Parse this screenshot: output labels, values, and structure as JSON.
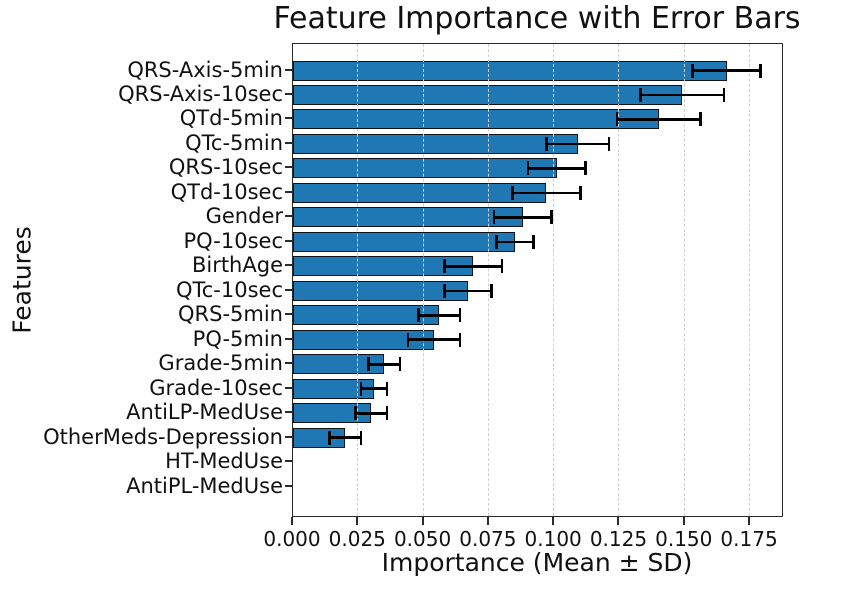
{
  "title": "Feature Importance with Error Bars",
  "chart_data": {
    "type": "bar",
    "orientation": "horizontal",
    "title": "Feature Importance with Error Bars",
    "xlabel": "Importance (Mean ± SD)",
    "ylabel": "Features",
    "categories": [
      "QRS-Axis-5min",
      "QRS-Axis-10sec",
      "QTd-5min",
      "QTc-5min",
      "QRS-10sec",
      "QTd-10sec",
      "Gender",
      "PQ-10sec",
      "BirthAge",
      "QTc-10sec",
      "QRS-5min",
      "PQ-5min",
      "Grade-5min",
      "Grade-10sec",
      "AntiLP-MedUse",
      "OtherMeds-Depression",
      "HT-MedUse",
      "AntiPL-MedUse"
    ],
    "series": [
      {
        "name": "Importance mean",
        "values": [
          0.166,
          0.149,
          0.14,
          0.109,
          0.101,
          0.097,
          0.088,
          0.085,
          0.069,
          0.067,
          0.056,
          0.054,
          0.035,
          0.031,
          0.03,
          0.02,
          0.0,
          0.0
        ]
      },
      {
        "name": "Importance SD",
        "values": [
          0.013,
          0.016,
          0.016,
          0.012,
          0.011,
          0.013,
          0.011,
          0.007,
          0.011,
          0.009,
          0.008,
          0.01,
          0.006,
          0.005,
          0.006,
          0.006,
          0.0,
          0.0
        ]
      }
    ],
    "xlim": [
      0,
      0.188
    ],
    "xticks": [
      0.0,
      0.025,
      0.05,
      0.075,
      0.1,
      0.125,
      0.15,
      0.175
    ],
    "xtick_labels": [
      "0.000",
      "0.025",
      "0.050",
      "0.075",
      "0.100",
      "0.125",
      "0.150",
      "0.175"
    ],
    "grid": "vertical-dashed",
    "legend": "none",
    "colors": {
      "bar_fill": "#1f77b4",
      "bar_edge": "#10131a",
      "error_bar": "#000000",
      "grid_line": "#cfcfcf",
      "spine": "#2b2b2b",
      "text": "#111111",
      "background": "#ffffff"
    }
  }
}
